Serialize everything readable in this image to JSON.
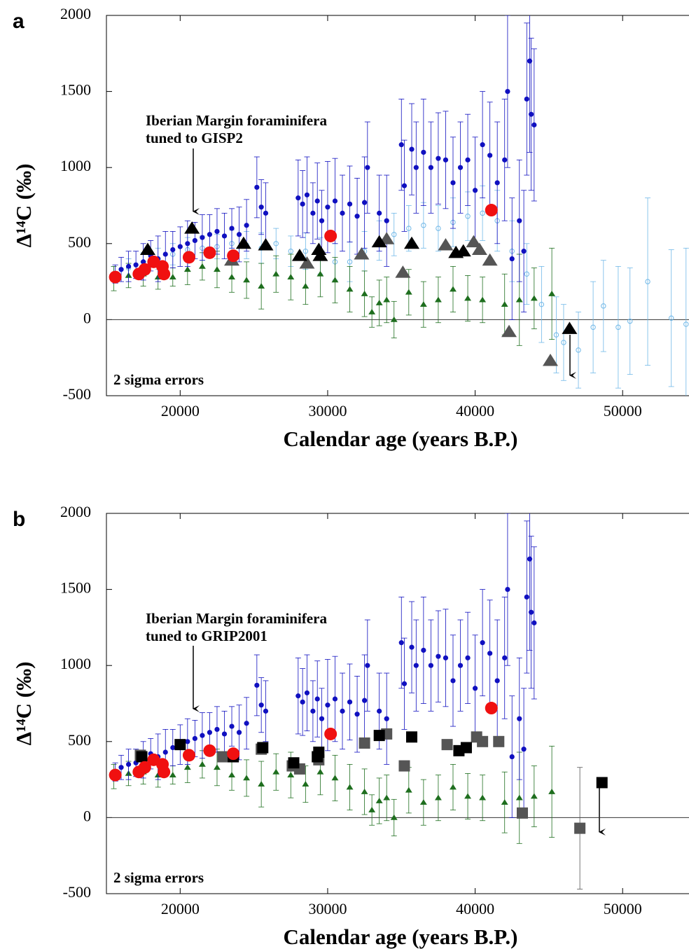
{
  "chart_data": [
    {
      "type": "scatter",
      "label": "a",
      "annotation": [
        "Iberian Margin foraminifera",
        "tuned to GISP2"
      ],
      "note": "2 sigma errors",
      "x_label": "Calendar age (years B.P.)",
      "y_label": "Δ¹⁴C  (‰)",
      "xlim": [
        15000,
        54500
      ],
      "ylim": [
        -500,
        2000
      ],
      "xticks": [
        20000,
        30000,
        40000,
        50000
      ],
      "yticks": [
        -500,
        0,
        500,
        1000,
        1500,
        2000
      ],
      "hline": 0,
      "series": [
        {
          "color": "#70b8e8",
          "marker": "open-circle",
          "marker_size": "small",
          "x": [
            15500,
            16500,
            17500,
            18500,
            19500,
            20500,
            21500,
            22500,
            23500,
            24500,
            25500,
            26500,
            27500,
            28500,
            29500,
            30500,
            31500,
            32500,
            33500,
            34500,
            35500,
            36500,
            37500,
            38500,
            39500,
            40500,
            41500,
            42500,
            43500,
            44500,
            45500,
            46000,
            47000,
            48000,
            48700,
            49700,
            50500,
            51700,
            53300,
            54300
          ],
          "values": [
            300,
            340,
            380,
            400,
            430,
            460,
            470,
            480,
            500,
            490,
            470,
            500,
            450,
            450,
            420,
            380,
            380,
            450,
            520,
            560,
            600,
            620,
            600,
            640,
            680,
            700,
            650,
            450,
            300,
            100,
            -100,
            -150,
            -200,
            -50,
            90,
            -50,
            -10,
            250,
            10,
            -30
          ],
          "errors": [
            50,
            60,
            60,
            70,
            70,
            80,
            80,
            80,
            90,
            90,
            100,
            100,
            100,
            120,
            120,
            120,
            130,
            130,
            130,
            140,
            150,
            150,
            150,
            160,
            160,
            180,
            200,
            200,
            200,
            250,
            250,
            250,
            250,
            300,
            300,
            400,
            350,
            550,
            450,
            500
          ]
        },
        {
          "color": "#1e6e1e",
          "marker": "triangle",
          "marker_size": "small",
          "x": [
            15500,
            16500,
            17500,
            18500,
            19500,
            20500,
            21500,
            22500,
            23500,
            24500,
            25500,
            26500,
            27500,
            28500,
            29500,
            30500,
            31500,
            32500,
            33000,
            33500,
            34000,
            34500,
            35500,
            36500,
            37500,
            38500,
            39500,
            40500,
            42000,
            43000,
            44000,
            45200
          ],
          "values": [
            270,
            290,
            300,
            280,
            280,
            330,
            350,
            330,
            280,
            260,
            220,
            300,
            280,
            220,
            300,
            260,
            200,
            170,
            50,
            110,
            130,
            0,
            180,
            100,
            130,
            200,
            140,
            130,
            100,
            130,
            140,
            170
          ],
          "errors": [
            80,
            80,
            80,
            80,
            60,
            100,
            90,
            120,
            100,
            120,
            150,
            120,
            150,
            120,
            150,
            150,
            150,
            150,
            100,
            150,
            150,
            120,
            150,
            150,
            150,
            150,
            150,
            150,
            200,
            300,
            200,
            300
          ]
        },
        {
          "color": "#1010c0",
          "marker": "circle",
          "marker_size": "small",
          "x": [
            15600,
            16000,
            16500,
            17000,
            17500,
            18000,
            18500,
            19000,
            19500,
            20000,
            20500,
            21000,
            21500,
            22000,
            22500,
            23000,
            23500,
            24000,
            24500,
            25200,
            25500,
            25800,
            28000,
            28300,
            28600,
            29000,
            29300,
            29600,
            30000,
            30500,
            31000,
            31500,
            32000,
            32500,
            32700,
            33500,
            34000,
            35000,
            35200,
            35700,
            36000,
            36500,
            37000,
            37500,
            38000,
            38500,
            39000,
            39500,
            40000,
            40500,
            41000,
            41500,
            42000,
            42200,
            42500,
            43000,
            43300,
            43500,
            43700,
            43800,
            44000
          ],
          "values": [
            300,
            330,
            350,
            360,
            380,
            420,
            400,
            430,
            460,
            480,
            500,
            520,
            540,
            560,
            580,
            550,
            600,
            560,
            620,
            870,
            740,
            700,
            800,
            760,
            820,
            700,
            780,
            650,
            740,
            780,
            700,
            760,
            680,
            770,
            1000,
            700,
            650,
            1150,
            880,
            1120,
            1000,
            1100,
            1000,
            1060,
            1050,
            900,
            1000,
            1050,
            850,
            1150,
            1080,
            900,
            1050,
            1500,
            400,
            650,
            450,
            1450,
            1700,
            1350,
            1280
          ],
          "errors": [
            60,
            80,
            100,
            90,
            120,
            100,
            150,
            150,
            120,
            130,
            150,
            120,
            150,
            130,
            150,
            150,
            130,
            180,
            170,
            200,
            180,
            200,
            250,
            220,
            250,
            200,
            250,
            200,
            300,
            280,
            250,
            250,
            250,
            300,
            300,
            250,
            300,
            300,
            300,
            300,
            300,
            350,
            300,
            300,
            320,
            300,
            300,
            300,
            350,
            350,
            350,
            400,
            400,
            500,
            400,
            400,
            400,
            500,
            600,
            500,
            500
          ]
        },
        {
          "color": "#555555",
          "marker": "triangle",
          "marker_size": "large",
          "x": [
            23500,
            28600,
            32300,
            34000,
            35100,
            38000,
            39900,
            40300,
            41000,
            42300,
            45100
          ],
          "values": [
            390,
            370,
            430,
            530,
            310,
            490,
            510,
            460,
            390,
            -80,
            -270
          ]
        },
        {
          "color": "#000000",
          "marker": "triangle",
          "marker_size": "large",
          "x": [
            17800,
            20800,
            24300,
            25800,
            28100,
            29400,
            29500,
            33500,
            35700,
            38700,
            39200,
            46400
          ],
          "values": [
            460,
            600,
            500,
            490,
            420,
            460,
            420,
            510,
            500,
            440,
            450,
            -60
          ]
        },
        {
          "color": "#f01010",
          "marker": "circle",
          "marker_size": "large",
          "x": [
            15600,
            17200,
            17600,
            18200,
            18800,
            18900,
            20600,
            22000,
            23600,
            30200,
            41100
          ],
          "values": [
            280,
            300,
            330,
            380,
            350,
            300,
            410,
            440,
            420,
            550,
            720
          ]
        }
      ]
    },
    {
      "type": "scatter",
      "label": "b",
      "annotation": [
        "Iberian Margin foraminifera",
        "tuned to GRIP2001"
      ],
      "note": "2 sigma errors",
      "x_label": "Calendar age (years B.P.)",
      "y_label": "Δ¹⁴C  (‰)",
      "xlim": [
        15000,
        54500
      ],
      "ylim": [
        -500,
        2000
      ],
      "xticks": [
        20000,
        30000,
        40000,
        50000
      ],
      "yticks": [
        -500,
        0,
        500,
        1000,
        1500,
        2000
      ],
      "hline": 0,
      "series": [
        {
          "color": "#1e6e1e",
          "marker": "triangle",
          "marker_size": "small",
          "x": [
            15500,
            16500,
            17500,
            18500,
            19500,
            20500,
            21500,
            22500,
            23500,
            24500,
            25500,
            26500,
            27500,
            28500,
            29500,
            30500,
            31500,
            32500,
            33000,
            33500,
            34000,
            34500,
            35500,
            36500,
            37500,
            38500,
            39500,
            40500,
            42000,
            43000,
            44000,
            45200
          ],
          "values": [
            270,
            290,
            300,
            280,
            280,
            330,
            350,
            330,
            280,
            260,
            220,
            300,
            280,
            220,
            300,
            260,
            200,
            170,
            50,
            110,
            130,
            0,
            180,
            100,
            130,
            200,
            140,
            130,
            100,
            130,
            140,
            170
          ],
          "errors": [
            80,
            80,
            80,
            80,
            60,
            100,
            90,
            120,
            100,
            120,
            150,
            120,
            150,
            120,
            150,
            150,
            150,
            150,
            100,
            150,
            150,
            120,
            150,
            150,
            150,
            150,
            150,
            150,
            200,
            300,
            200,
            300
          ]
        },
        {
          "color": "#1010c0",
          "marker": "circle",
          "marker_size": "small",
          "x": [
            15600,
            16000,
            16500,
            17000,
            17500,
            18000,
            18500,
            19000,
            19500,
            20000,
            20500,
            21000,
            21500,
            22000,
            22500,
            23000,
            23500,
            24000,
            24500,
            25200,
            25500,
            25800,
            28000,
            28300,
            28600,
            29000,
            29300,
            29600,
            30000,
            30500,
            31000,
            31500,
            32000,
            32500,
            32700,
            33500,
            34000,
            35000,
            35200,
            35700,
            36000,
            36500,
            37000,
            37500,
            38000,
            38500,
            39000,
            39500,
            40000,
            40500,
            41000,
            41500,
            42000,
            42200,
            42500,
            43000,
            43300,
            43500,
            43700,
            43800,
            44000
          ],
          "values": [
            300,
            330,
            350,
            360,
            380,
            420,
            400,
            430,
            460,
            480,
            500,
            520,
            540,
            560,
            580,
            550,
            600,
            560,
            620,
            870,
            740,
            700,
            800,
            760,
            820,
            700,
            780,
            650,
            740,
            780,
            700,
            760,
            680,
            770,
            1000,
            700,
            650,
            1150,
            880,
            1120,
            1000,
            1100,
            1000,
            1060,
            1050,
            900,
            1000,
            1050,
            850,
            1150,
            1080,
            900,
            1050,
            1500,
            400,
            650,
            450,
            1450,
            1700,
            1350,
            1280
          ],
          "errors": [
            60,
            80,
            100,
            90,
            120,
            100,
            150,
            150,
            120,
            130,
            150,
            120,
            150,
            130,
            150,
            150,
            130,
            180,
            170,
            200,
            180,
            200,
            250,
            220,
            250,
            200,
            250,
            200,
            300,
            280,
            250,
            250,
            250,
            300,
            300,
            250,
            300,
            300,
            300,
            300,
            300,
            350,
            300,
            300,
            320,
            300,
            300,
            300,
            350,
            350,
            350,
            400,
            400,
            500,
            400,
            400,
            400,
            500,
            600,
            500,
            500
          ]
        },
        {
          "color": "#555555",
          "marker": "square",
          "marker_size": "large",
          "x": [
            17300,
            22900,
            25500,
            27600,
            28100,
            29400,
            32500,
            34000,
            35200,
            38100,
            40100,
            40500,
            41600,
            43200,
            47100
          ],
          "values": [
            410,
            400,
            450,
            340,
            320,
            380,
            490,
            550,
            340,
            480,
            530,
            500,
            500,
            30,
            -70
          ],
          "errors": [
            null,
            null,
            null,
            null,
            null,
            null,
            null,
            null,
            null,
            null,
            null,
            null,
            null,
            null,
            400
          ]
        },
        {
          "color": "#000000",
          "marker": "square",
          "marker_size": "large",
          "x": [
            17400,
            20000,
            23600,
            25600,
            27700,
            29300,
            29400,
            33500,
            35700,
            38900,
            39400,
            48600
          ],
          "values": [
            400,
            480,
            400,
            460,
            360,
            400,
            430,
            540,
            530,
            440,
            460,
            230
          ]
        },
        {
          "color": "#f01010",
          "marker": "circle",
          "marker_size": "large",
          "x": [
            15600,
            17200,
            17600,
            18200,
            18800,
            18900,
            20600,
            22000,
            23600,
            30200,
            41100
          ],
          "values": [
            280,
            300,
            330,
            380,
            350,
            300,
            410,
            440,
            420,
            550,
            720
          ]
        }
      ]
    }
  ]
}
